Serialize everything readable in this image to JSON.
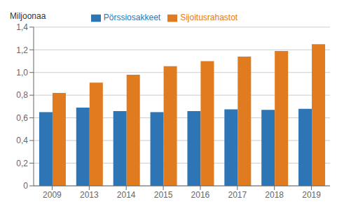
{
  "chart_data": {
    "type": "bar",
    "ylabel": "Miljoonaa",
    "categories": [
      "2009",
      "2013",
      "2014",
      "2015",
      "2016",
      "2017",
      "2018",
      "2019"
    ],
    "series": [
      {
        "name": "Pörssiosakkeet",
        "color": "#2e75b6",
        "values": [
          0.65,
          0.69,
          0.66,
          0.65,
          0.66,
          0.675,
          0.67,
          0.68
        ]
      },
      {
        "name": "Sijoitusrahastot",
        "color": "#e07b20",
        "values": [
          0.82,
          0.91,
          0.98,
          1.055,
          1.1,
          1.14,
          1.19,
          1.25
        ]
      }
    ],
    "ylim": [
      0,
      1.4
    ],
    "yticks": [
      0,
      {
        "value": 0.2,
        "label": "0,2"
      },
      {
        "value": 0.4,
        "label": "0,4"
      },
      {
        "value": 0.6,
        "label": "0,6"
      },
      {
        "value": 0.8,
        "label": "0,8"
      },
      {
        "value": 1.0,
        "label": "1,0"
      },
      {
        "value": 1.2,
        "label": "1,2"
      },
      {
        "value": 1.4,
        "label": "1,4"
      }
    ],
    "grid": true,
    "legend": "top"
  }
}
